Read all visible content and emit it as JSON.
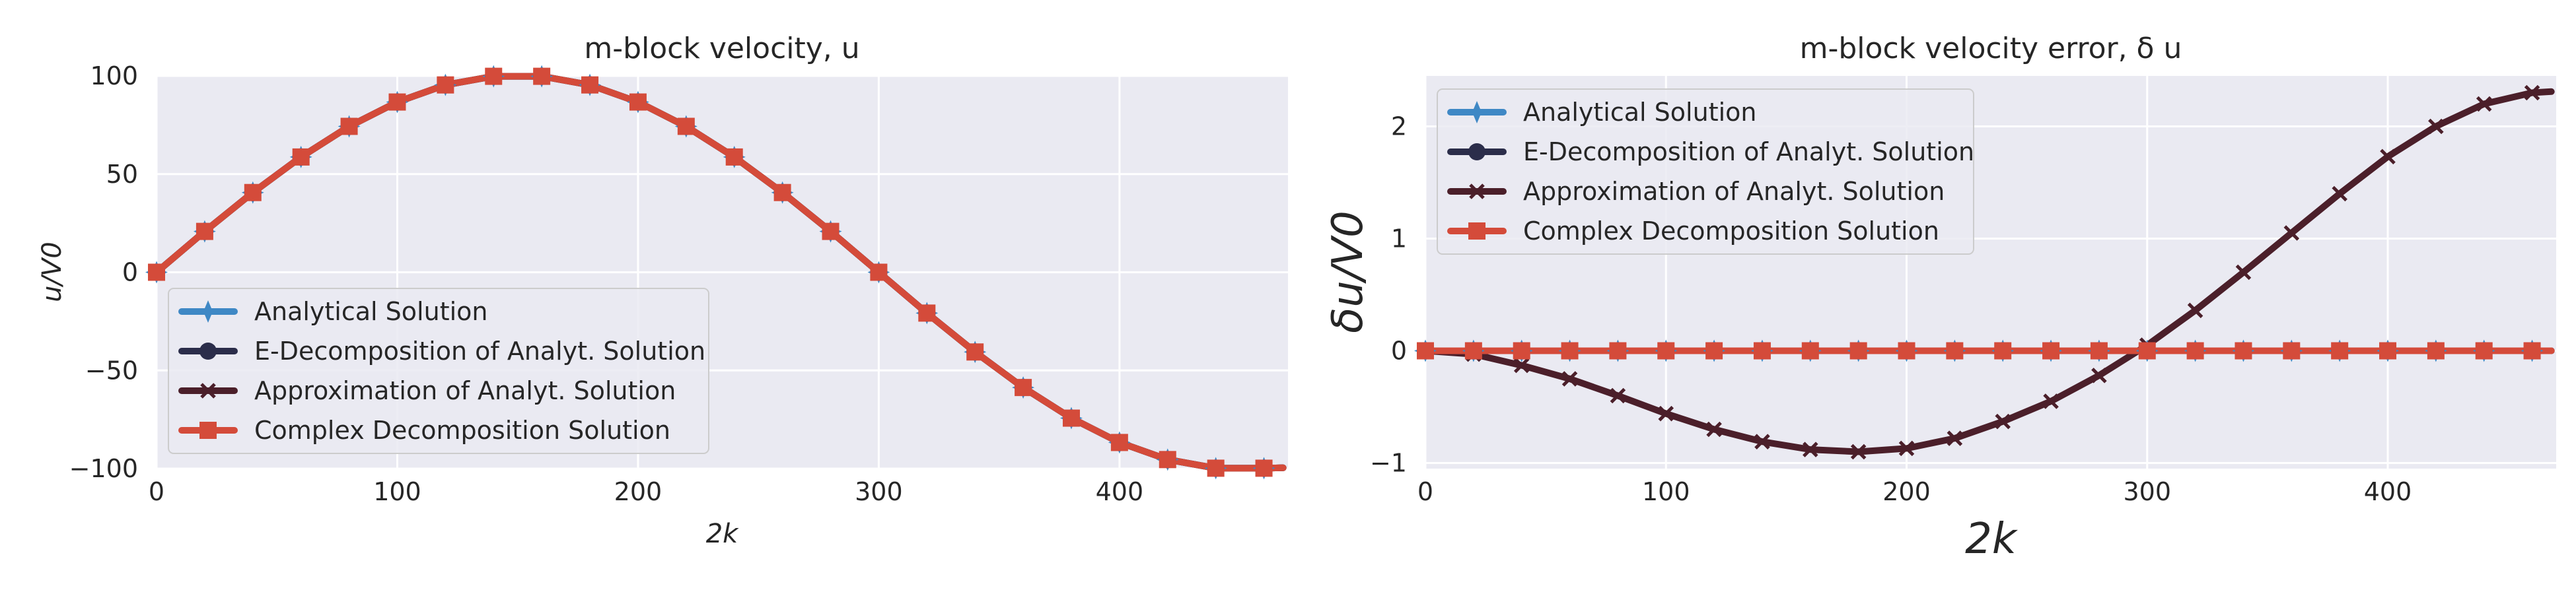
{
  "chart_data": [
    {
      "type": "line",
      "title": "m-block velocity, u",
      "xlabel": "2k",
      "ylabel": "u/V0",
      "xlim": [
        0,
        470
      ],
      "ylim": [
        -100,
        100
      ],
      "xticks": [
        0,
        100,
        200,
        300,
        400
      ],
      "yticks": [
        100,
        50,
        0,
        -50,
        -100
      ],
      "xtick_labels": [
        "0",
        "100",
        "200",
        "300",
        "400"
      ],
      "ytick_labels": [
        "100",
        "50",
        "0",
        "−50",
        "−100"
      ],
      "grid": true,
      "legend_position": "lower-left",
      "x": [
        0,
        20,
        40,
        60,
        80,
        100,
        120,
        140,
        160,
        180,
        200,
        220,
        240,
        260,
        280,
        300,
        320,
        340,
        360,
        380,
        400,
        420,
        440,
        460,
        468
      ],
      "series": [
        {
          "name": "Analytical Solution",
          "color": "#3f88c5",
          "marker": "star4",
          "values": [
            0,
            20.8,
            40.6,
            58.7,
            74.3,
            86.7,
            95.4,
            99.8,
            99.8,
            95.4,
            86.7,
            74.3,
            58.7,
            40.6,
            20.8,
            0,
            -20.8,
            -40.6,
            -58.7,
            -74.3,
            -86.7,
            -95.4,
            -99.8,
            -99.8,
            -99.6
          ]
        },
        {
          "name": "E-Decomposition of Analyt. Solution",
          "color": "#2b2d4a",
          "marker": "circle",
          "values": [
            0,
            20.8,
            40.6,
            58.7,
            74.3,
            86.7,
            95.4,
            99.8,
            99.8,
            95.4,
            86.7,
            74.3,
            58.7,
            40.6,
            20.8,
            0,
            -20.8,
            -40.6,
            -58.7,
            -74.3,
            -86.7,
            -95.4,
            -99.8,
            -99.8,
            -99.6
          ]
        },
        {
          "name": "Approximation of Analyt. Solution",
          "color": "#4b1f2a",
          "marker": "x",
          "values": [
            0,
            20.8,
            40.6,
            58.7,
            74.3,
            86.7,
            95.4,
            99.8,
            99.8,
            95.4,
            86.7,
            74.3,
            58.7,
            40.6,
            20.8,
            0,
            -20.8,
            -40.6,
            -58.7,
            -74.3,
            -86.7,
            -95.4,
            -99.8,
            -99.8,
            -99.6
          ]
        },
        {
          "name": "Complex Decomposition Solution",
          "color": "#d44b3a",
          "marker": "square",
          "values": [
            0,
            20.8,
            40.6,
            58.7,
            74.3,
            86.7,
            95.4,
            99.8,
            99.8,
            95.4,
            86.7,
            74.3,
            58.7,
            40.6,
            20.8,
            0,
            -20.8,
            -40.6,
            -58.7,
            -74.3,
            -86.7,
            -95.4,
            -99.8,
            -99.8,
            -99.6
          ]
        }
      ]
    },
    {
      "type": "line",
      "title": "m-block velocity error, δ u",
      "xlabel": "2k",
      "ylabel": "δu/V0",
      "xlim": [
        0,
        470
      ],
      "ylim": [
        -1.05,
        2.45
      ],
      "xticks": [
        0,
        100,
        200,
        300,
        400
      ],
      "yticks": [
        2,
        1,
        0,
        -1
      ],
      "xtick_labels": [
        "0",
        "100",
        "200",
        "300",
        "400"
      ],
      "ytick_labels": [
        "2",
        "1",
        "0",
        "−1"
      ],
      "grid": true,
      "legend_position": "upper-left",
      "x": [
        0,
        20,
        40,
        60,
        80,
        100,
        120,
        140,
        160,
        180,
        200,
        220,
        240,
        260,
        280,
        300,
        320,
        340,
        360,
        380,
        400,
        420,
        440,
        460,
        468
      ],
      "series": [
        {
          "name": "Analytical Solution",
          "color": "#3f88c5",
          "marker": "star4",
          "values": [
            0,
            0,
            0,
            0,
            0,
            0,
            0,
            0,
            0,
            0,
            0,
            0,
            0,
            0,
            0,
            0,
            0,
            0,
            0,
            0,
            0,
            0,
            0,
            0,
            0
          ]
        },
        {
          "name": "E-Decomposition of Analyt. Solution",
          "color": "#2b2d4a",
          "marker": "circle",
          "values": [
            0,
            0,
            0,
            0,
            0,
            0,
            0,
            0,
            0,
            0,
            0,
            0,
            0,
            0,
            0,
            0,
            0,
            0,
            0,
            0,
            0,
            0,
            0,
            0,
            0
          ]
        },
        {
          "name": "Approximation of Analyt. Solution",
          "color": "#4b1f2a",
          "marker": "x",
          "values": [
            0,
            -0.03,
            -0.13,
            -0.25,
            -0.4,
            -0.56,
            -0.7,
            -0.81,
            -0.88,
            -0.9,
            -0.87,
            -0.78,
            -0.63,
            -0.45,
            -0.22,
            0.05,
            0.36,
            0.7,
            1.05,
            1.4,
            1.73,
            2.0,
            2.2,
            2.3,
            2.31
          ]
        },
        {
          "name": "Complex Decomposition Solution",
          "color": "#d44b3a",
          "marker": "square",
          "values": [
            0,
            0,
            0,
            0,
            0,
            0,
            0,
            0,
            0,
            0,
            0,
            0,
            0,
            0,
            0,
            0,
            0,
            0,
            0,
            0,
            0,
            0,
            0,
            0,
            0
          ]
        }
      ]
    }
  ]
}
